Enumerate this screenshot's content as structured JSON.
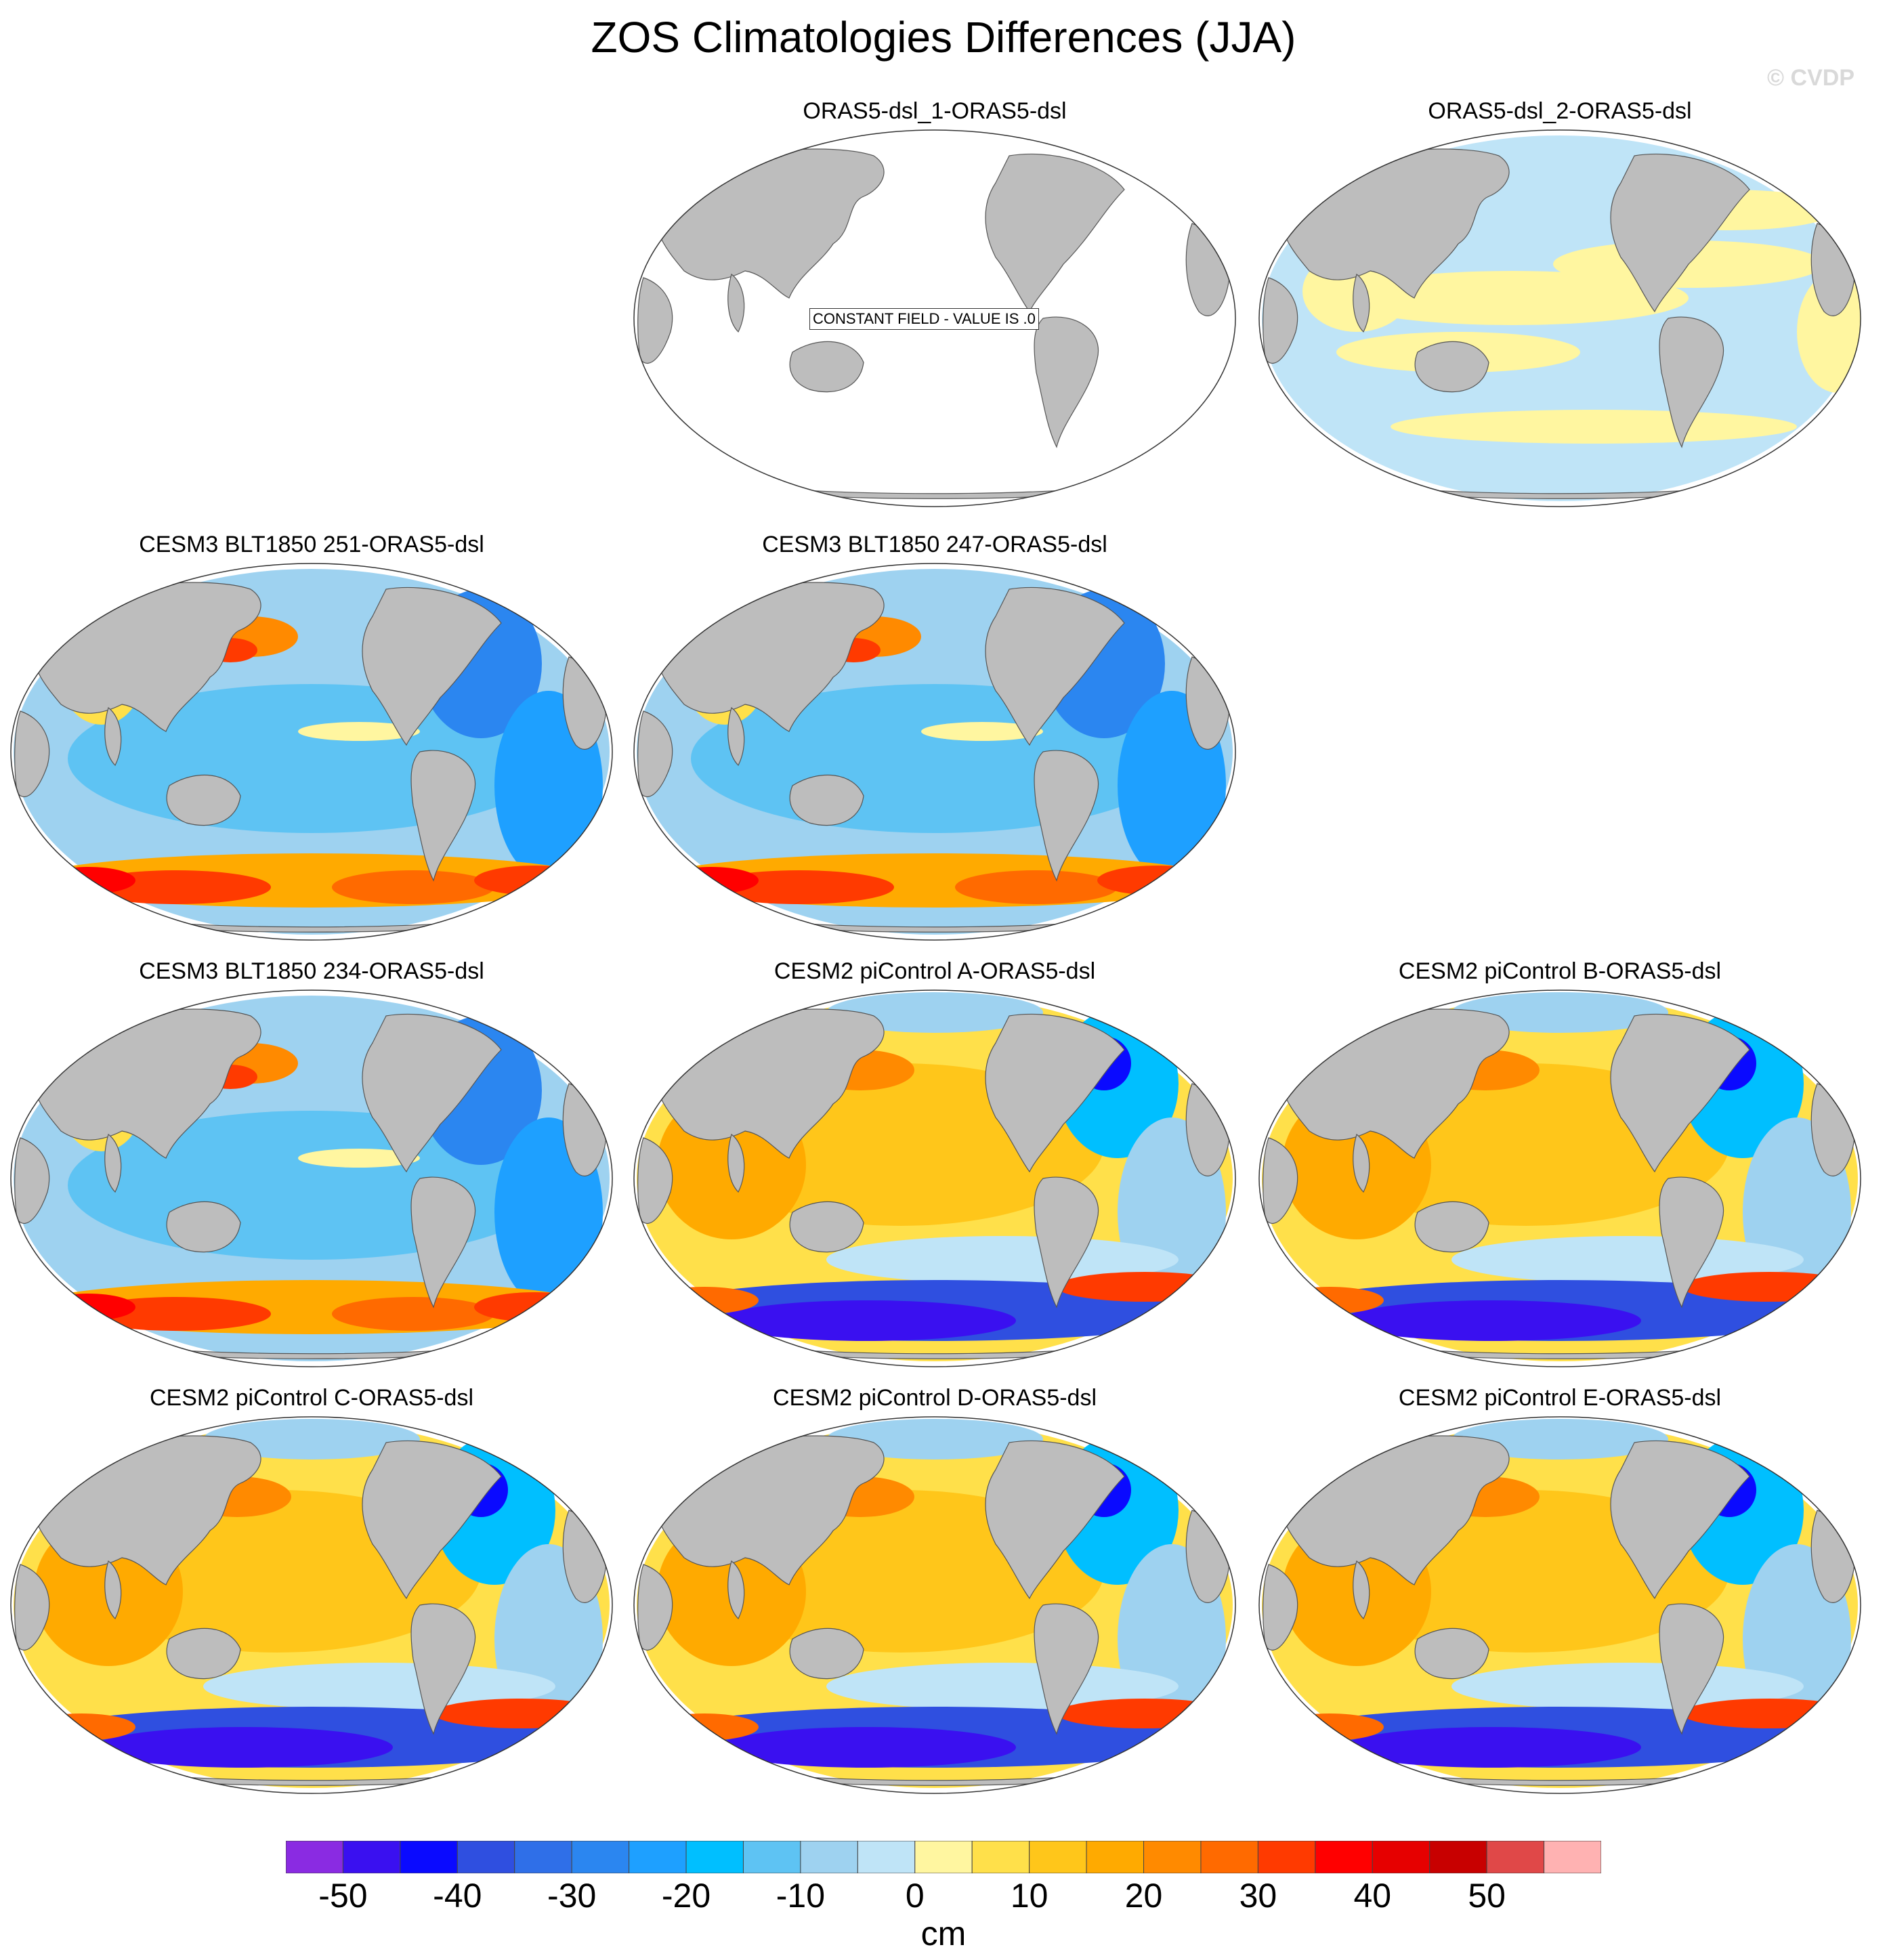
{
  "title": "ZOS Climatologies Differences (JJA)",
  "watermark": "© CVDP",
  "units": "cm",
  "colorbar": {
    "colors": [
      "#8a2be2",
      "#3a10f0",
      "#0a0aff",
      "#2f4fe0",
      "#2f6fe8",
      "#2b86f0",
      "#1ea0ff",
      "#00bfff",
      "#5ec3f3",
      "#9ed2f0",
      "#bfe4f7",
      "#fff6a0",
      "#ffe04a",
      "#ffc61a",
      "#ffaa00",
      "#ff8a00",
      "#ff6a00",
      "#ff3a00",
      "#ff0000",
      "#e60000",
      "#c80000",
      "#e04848",
      "#ffb2b2"
    ],
    "labels": [
      "-50",
      "-40",
      "-30",
      "-20",
      "-10",
      "0",
      "10",
      "20",
      "30",
      "40",
      "50"
    ]
  },
  "panels": [
    {
      "title": "ORAS5-dsl_1-ORAS5-dsl",
      "pattern": "constant",
      "note": "CONSTANT FIELD - VALUE IS .0"
    },
    {
      "title": "ORAS5-dsl_2-ORAS5-dsl",
      "pattern": "pale"
    },
    {
      "title": "CESM3 BLT1850 251-ORAS5-dsl",
      "pattern": "cesm3"
    },
    {
      "title": "CESM3 BLT1850 247-ORAS5-dsl",
      "pattern": "cesm3"
    },
    {
      "title": "CESM3 BLT1850 234-ORAS5-dsl",
      "pattern": "cesm3"
    },
    {
      "title": "CESM2 piControl A-ORAS5-dsl",
      "pattern": "cesm2"
    },
    {
      "title": "CESM2 piControl B-ORAS5-dsl",
      "pattern": "cesm2"
    },
    {
      "title": "CESM2 piControl C-ORAS5-dsl",
      "pattern": "cesm2"
    },
    {
      "title": "CESM2 piControl D-ORAS5-dsl",
      "pattern": "cesm2"
    },
    {
      "title": "CESM2 piControl E-ORAS5-dsl",
      "pattern": "cesm2"
    }
  ]
}
